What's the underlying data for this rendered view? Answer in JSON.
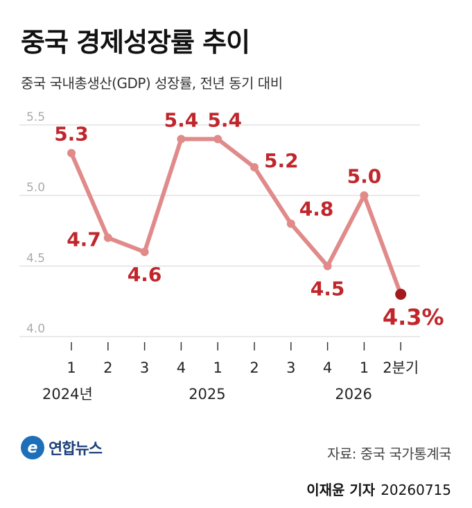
{
  "header": {
    "title": "중국 경제성장률 추이",
    "subtitle": "중국 국내총생산(GDP) 성장률, 전년 동기 대비"
  },
  "chart_data": {
    "type": "line",
    "categories": [
      "1",
      "2",
      "3",
      "4",
      "1",
      "2",
      "3",
      "4",
      "1",
      "2분기"
    ],
    "year_labels": [
      {
        "label": "2024년",
        "index": 0
      },
      {
        "label": "2025",
        "index": 4
      },
      {
        "label": "2026",
        "index": 8
      }
    ],
    "values": [
      5.3,
      4.7,
      4.6,
      5.4,
      5.4,
      5.2,
      4.8,
      4.5,
      5.0,
      4.3
    ],
    "value_labels": [
      "5.3",
      "4.7",
      "4.6",
      "5.4",
      "5.4",
      "5.2",
      "4.8",
      "4.5",
      "5.0",
      "4.3%"
    ],
    "yticks": [
      "5.5",
      "5.0",
      "4.5",
      "4.0"
    ],
    "ylim": [
      4.0,
      5.5
    ],
    "grid": true,
    "colors": {
      "line": "#e08a8a",
      "label": "#c0262b",
      "last_point": "#a31a1e",
      "grid": "#e2e2e2",
      "tick": "#aaaaaa"
    }
  },
  "footer": {
    "logo_text": "연합뉴스",
    "source": "자료: 중국 국가통계국",
    "reporter": "이재윤 기자",
    "date": "20260715"
  }
}
